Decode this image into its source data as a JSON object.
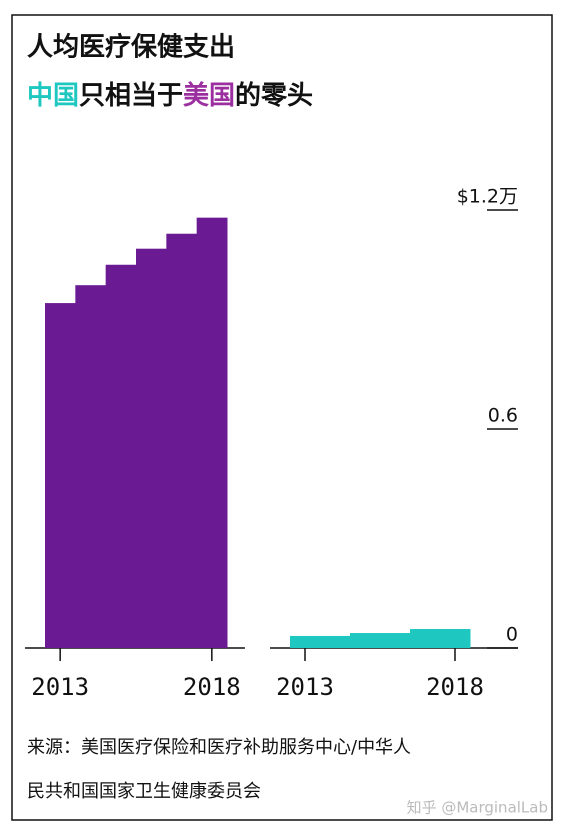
{
  "chart_data": {
    "type": "step-bar",
    "title": "人均医疗保健支出",
    "subtitle": [
      {
        "text": "中国",
        "color": "#1ec8c0"
      },
      {
        "text": "只相当于",
        "color": "#111111"
      },
      {
        "text": "美国",
        "color": "#9b2fa0"
      },
      {
        "text": "的零头",
        "color": "#111111"
      }
    ],
    "categories": [
      "2013",
      null,
      null,
      null,
      null,
      "2018"
    ],
    "series": [
      {
        "color": "#6a1b94",
        "values": [
          0.945,
          0.994,
          1.05,
          1.094,
          1.135,
          1.179
        ]
      },
      {
        "color": "#1ec8c0",
        "values": [
          0.033,
          0.033,
          0.041,
          0.041,
          0.052,
          0.052
        ]
      }
    ],
    "ylim": [
      0,
      1.2
    ],
    "yticks": [
      0,
      0.6,
      {
        "value": 1.2,
        "label": "$1.2万"
      }
    ],
    "source": [
      "来源：美国医疗保险和医疗补助服务中心/中华人",
      "民共和国国家卫生健康委员会"
    ],
    "watermark": "知乎 @MarginalLab"
  }
}
